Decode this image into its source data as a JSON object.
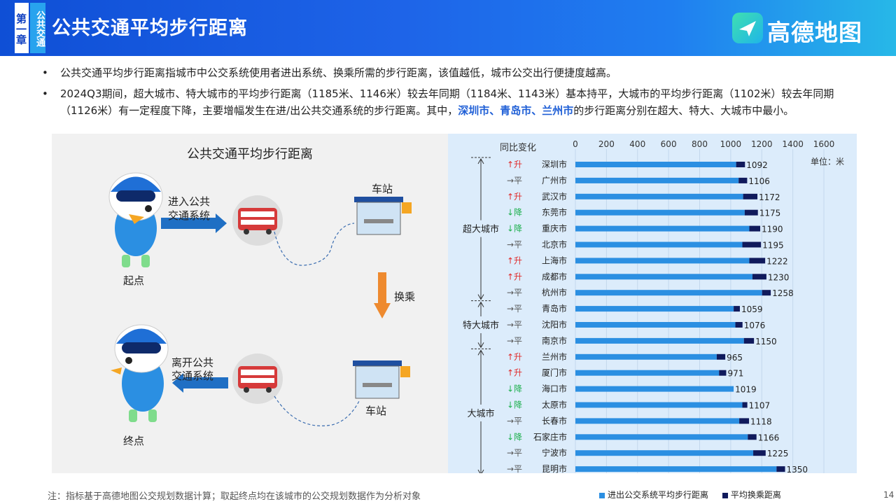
{
  "header": {
    "chapter_char": "第一章",
    "chapter_sub": "公共交通",
    "title": "公共交通平均步行距离",
    "brand": "高德地图"
  },
  "bullets": {
    "b1": "公共交通平均步行距离指城市中公交系统使用者进出系统、换乘所需的步行距离，该值越低，城市公交出行便捷度越高。",
    "b2_part1": "2024Q3期间，超大城市、特大城市的平均步行距离（1185米、1146米）较去年同期（1184米、1143米）基本持平，大城市的平均步行距离（1102米）较去年同期（1126米）有一定程度下降，主要增幅发生在进/出公共交通系统的步行距离。其中，",
    "b2_highlight": "深圳市、青岛市、兰州市",
    "b2_part2": "的步行距离分别在超大、特大、大城市中最小。"
  },
  "diagram": {
    "title": "公共交通平均步行距离",
    "enter_label_1": "进入公共",
    "enter_label_2": "交通系统",
    "start_label": "起点",
    "station_top": "车站",
    "transfer": "换乘",
    "exit_label_1": "离开公共",
    "exit_label_2": "交通系统",
    "station_bottom": "车站",
    "end_label": "终点"
  },
  "chart_data": {
    "type": "bar",
    "stacked": true,
    "orientation": "horizontal",
    "yoy_header": "同比变化",
    "unit": "单位：米",
    "xlim": [
      0,
      1600
    ],
    "x_ticks": [
      "0",
      "200",
      "400",
      "600",
      "800",
      "1000",
      "1200",
      "1400",
      "1600"
    ],
    "groups": [
      {
        "name": "超大城市",
        "start": 0,
        "end": 8
      },
      {
        "name": "特大城市",
        "start": 9,
        "end": 11
      },
      {
        "name": "大城市",
        "start": 12,
        "end": 19
      }
    ],
    "categories": [
      "深圳市",
      "广州市",
      "武汉市",
      "东莞市",
      "重庆市",
      "北京市",
      "上海市",
      "成都市",
      "杭州市",
      "青岛市",
      "沈阳市",
      "南京市",
      "兰州市",
      "厦门市",
      "海口市",
      "太原市",
      "长春市",
      "石家庄市",
      "宁波市",
      "昆明市"
    ],
    "yoy": [
      "↑升",
      "→平",
      "↑升",
      "↓降",
      "↓降",
      "→平",
      "↑升",
      "↑升",
      "→平",
      "→平",
      "→平",
      "→平",
      "↑升",
      "↑升",
      "↓降",
      "↓降",
      "→平",
      "↓降",
      "→平",
      "→平"
    ],
    "totals": [
      "1092",
      "1106",
      "1172",
      "1175",
      "1190",
      "1195",
      "1222",
      "1230",
      "1258",
      "1059",
      "1076",
      "1150",
      "965",
      "971",
      "1019",
      "1107",
      "1118",
      "1166",
      "1225",
      "1350"
    ],
    "series": [
      {
        "name": "进出公交系统平均步行距离",
        "color": "#2b8fe2",
        "values": [
          1035,
          1051,
          1080,
          1090,
          1120,
          1075,
          1120,
          1140,
          1202,
          1019,
          1030,
          1085,
          910,
          925,
          1019,
          1075,
          1055,
          1110,
          1145,
          1295
        ]
      },
      {
        "name": "平均换乘距离",
        "color": "#101a5c",
        "values": [
          57,
          55,
          92,
          85,
          70,
          120,
          102,
          90,
          56,
          40,
          46,
          65,
          55,
          46,
          0,
          32,
          63,
          56,
          80,
          55
        ]
      }
    ]
  },
  "footnote": "注：指标基于高德地图公交规划数据计算；取起终点均在该城市的公交规划数据作为分析对象",
  "page_number": "14"
}
